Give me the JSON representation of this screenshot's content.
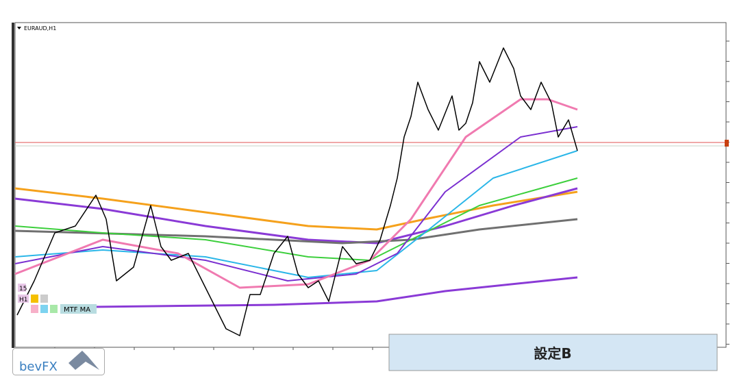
{
  "chart_window": {
    "symbol": "EURAUD,H1"
  },
  "indicator": {
    "timeframes": [
      "15",
      "H1"
    ],
    "name": "MTF MA"
  },
  "caption": "設定B",
  "logo": "bevFX"
}
